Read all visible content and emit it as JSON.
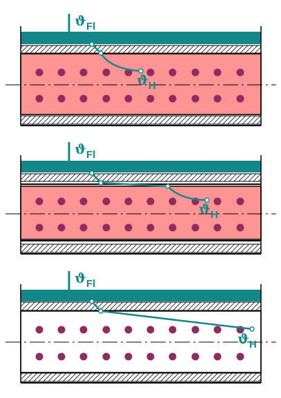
{
  "panels": [
    {
      "top_label": {
        "symbol": "ϑ",
        "sub": "Fl"
      },
      "bottom_label": {
        "symbol": "ϑ",
        "sub": "H"
      }
    },
    {
      "top_label": {
        "symbol": "ϑ",
        "sub": "Fl"
      },
      "bottom_label": {
        "symbol": "ϑ",
        "sub": "H"
      }
    },
    {
      "top_label": {
        "symbol": "ϑ",
        "sub": "Fl"
      },
      "bottom_label": {
        "symbol": "ϑ",
        "sub": "H"
      }
    }
  ]
}
